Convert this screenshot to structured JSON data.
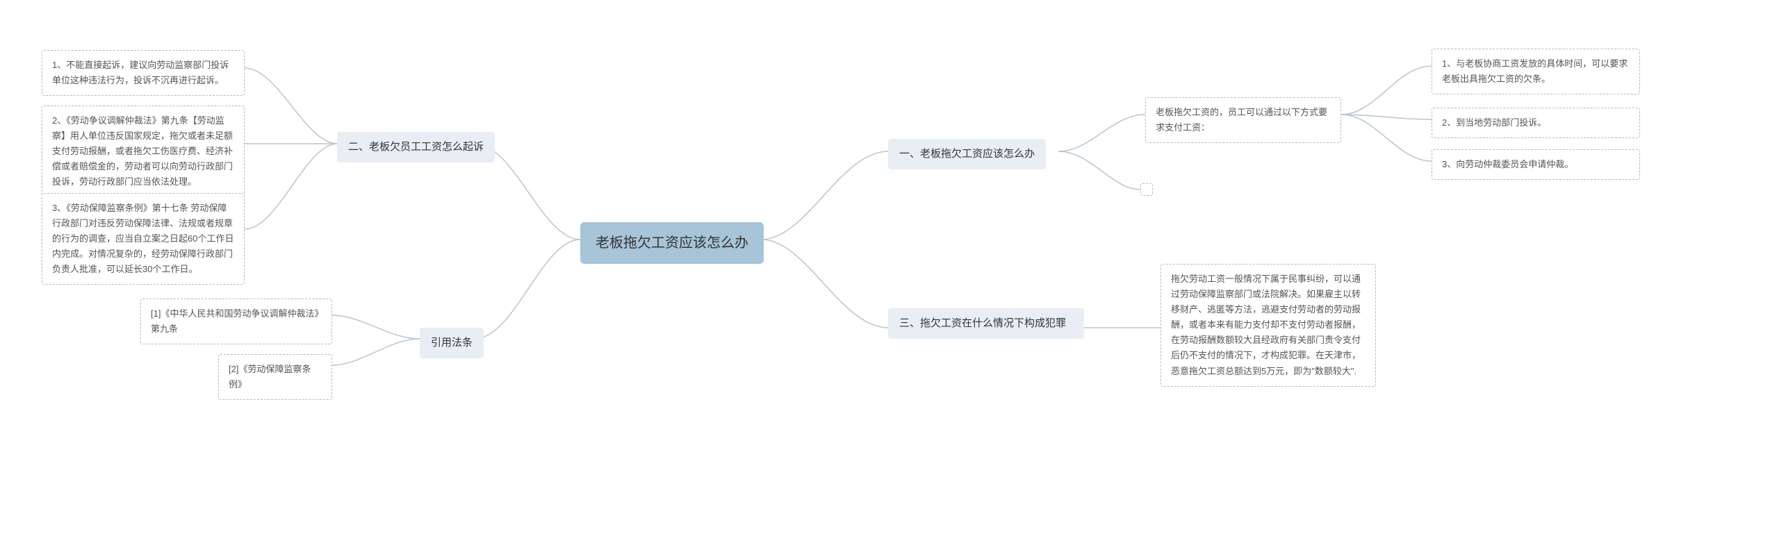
{
  "root": {
    "title": "老板拖欠工资应该怎么办"
  },
  "branch1": {
    "title": "一、老板拖欠工资应该怎么办",
    "intro": "老板拖欠工资的，员工可以通过以下方式要求支付工资：",
    "items": [
      "1、与老板协商工资发放的具体时间，可以要求老板出具拖欠工资的欠条。",
      "2、到当地劳动部门投诉。",
      "3、向劳动仲裁委员会申请仲裁。"
    ]
  },
  "branch2": {
    "title": "二、老板欠员工工资怎么起诉",
    "items": [
      "1、不能直接起诉，建议向劳动监察部门投诉单位这种违法行为，投诉不沉再进行起诉。",
      "2、《劳动争议调解仲裁法》第九条【劳动监察】用人单位违反国家规定，拖欠或者未足额支付劳动报酬，或者拖欠工伤医疗费、经济补偿或者赔偿金的，劳动者可以向劳动行政部门投诉，劳动行政部门应当依法处理。",
      "3、《劳动保障监察条例》第十七条 劳动保障行政部门对违反劳动保障法律、法规或者规章的行为的调查，应当自立案之日起60个工作日内完成。对情况复杂的，经劳动保障行政部门负责人批准，可以延长30个工作日。"
    ]
  },
  "branch3": {
    "title": "三、拖欠工资在什么情况下构成犯罪",
    "text": "拖欠劳动工资一般情况下属于民事纠纷，可以通过劳动保障监察部门或法院解决。如果雇主以转移财产、逃匿等方法，逃避支付劳动者的劳动报酬，或者本来有能力支付却不支付劳动者报酬，在劳动报酬数额较大且经政府有关部门责令支付后仍不支付的情况下，才构成犯罪。在天津市，恶意拖欠工资总额达到5万元，即为\"数额较大\"."
  },
  "branch4": {
    "title": "引用法条",
    "items": [
      "[1]《中华人民共和国劳动争议调解仲裁法》第九条",
      "[2]《劳动保障监察条例》"
    ]
  },
  "style": {
    "root_bg": "#a7c4d8",
    "branch_bg": "#e8eef3",
    "leaf_border": "#b8b8b8",
    "connector": "#b8c5d0",
    "bg": "#ffffff"
  }
}
